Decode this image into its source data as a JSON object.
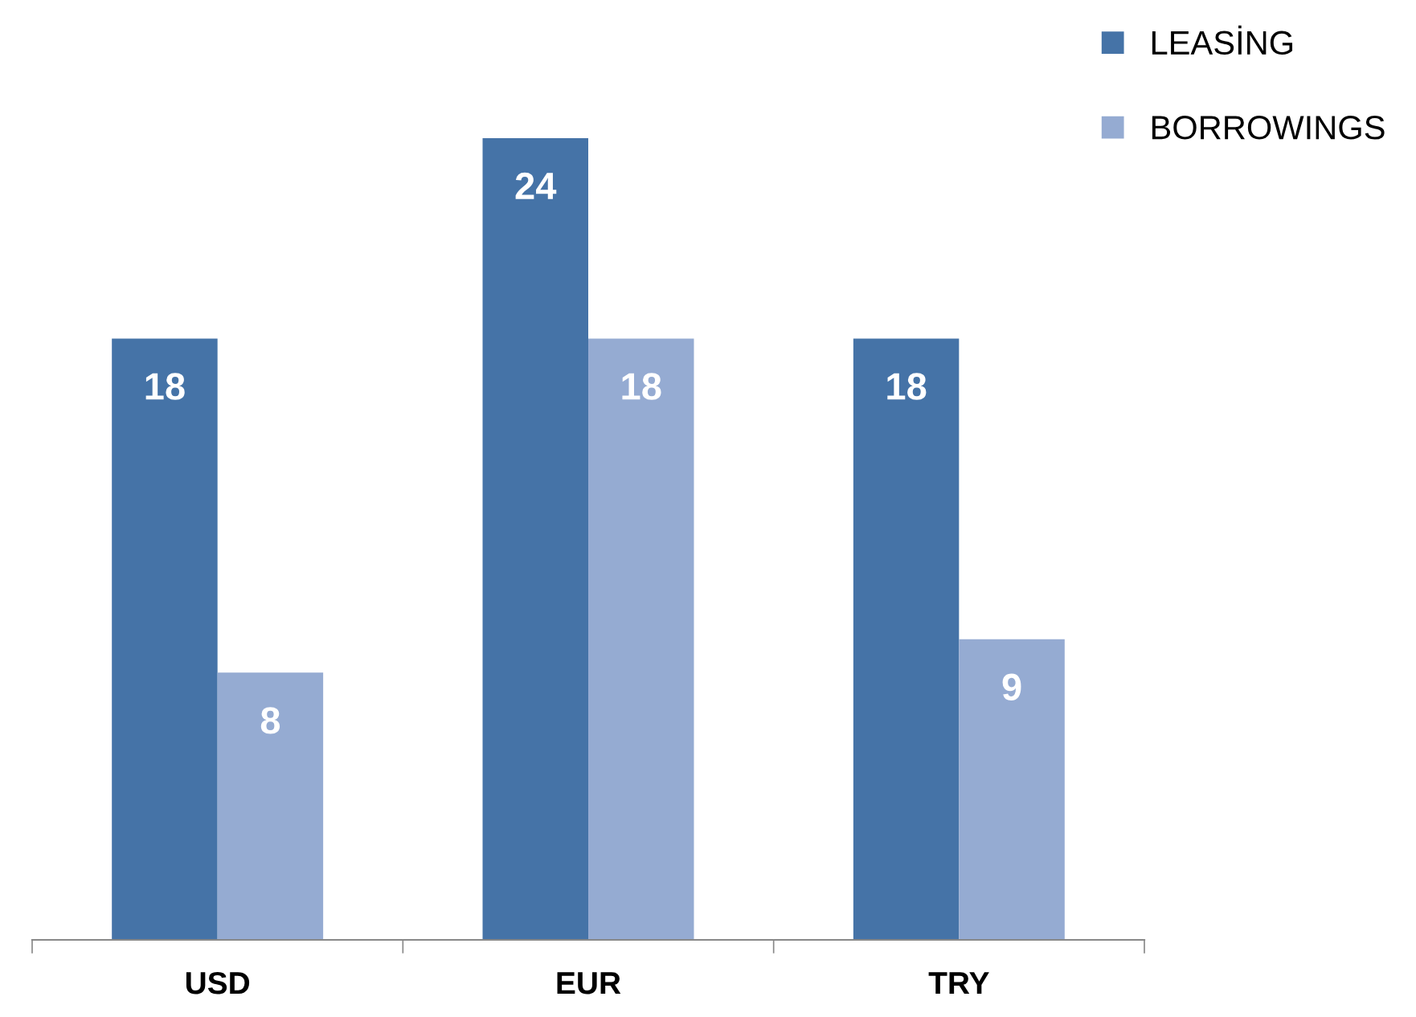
{
  "chart_data": {
    "type": "bar",
    "categories": [
      "USD",
      "EUR",
      "TRY"
    ],
    "series": [
      {
        "name": "LEASİNG",
        "color": "#4573a7",
        "values": [
          18,
          24,
          18
        ]
      },
      {
        "name": "BORROWINGS",
        "color": "#95abd2",
        "values": [
          8,
          18,
          9
        ]
      }
    ],
    "data_labels": true,
    "legend": "top right",
    "marker": "square",
    "grid": false
  }
}
